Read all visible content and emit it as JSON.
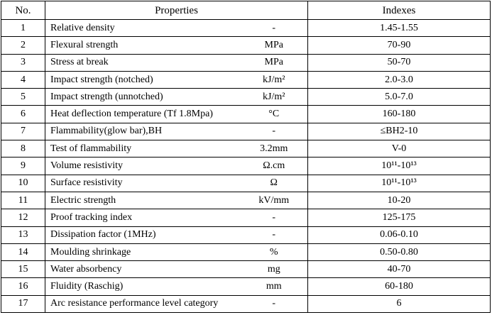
{
  "table": {
    "header": [
      "No.",
      "Properties",
      "Indexes"
    ],
    "rows": [
      [
        "1",
        "Relative density",
        "-",
        "1.45-1.55"
      ],
      [
        "2",
        "Flexural strength",
        "MPa",
        "70-90"
      ],
      [
        "3",
        "Stress at break",
        "MPa",
        "50-70"
      ],
      [
        "4",
        "Impact strength (notched)",
        "kJ/m²",
        "2.0-3.0"
      ],
      [
        "5",
        "Impact strength (unnotched)",
        "kJ/m²",
        "5.0-7.0"
      ],
      [
        "6",
        "Heat deflection temperature (Tf 1.8Mpa)",
        "°C",
        "160-180"
      ],
      [
        "7",
        "Flammability(glow bar),BH",
        "-",
        "≤BH2-10"
      ],
      [
        "8",
        "Test of flammability",
        "3.2mm",
        "V-0"
      ],
      [
        "9",
        "Volume resistivity",
        "Ω.cm",
        "10¹¹-10¹³"
      ],
      [
        "10",
        "Surface resistivity",
        "Ω",
        "10¹¹-10¹³"
      ],
      [
        "11",
        "Electric strength",
        "kV/mm",
        "10-20"
      ],
      [
        "12",
        "Proof tracking index",
        "-",
        "125-175"
      ],
      [
        "13",
        "Dissipation factor (1MHz)",
        "-",
        "0.06-0.10"
      ],
      [
        "14",
        "Moulding shrinkage",
        "%",
        "0.50-0.80"
      ],
      [
        "15",
        "Water absorbency",
        "mg",
        "40-70"
      ],
      [
        "16",
        "Fluidity (Raschig)",
        "mm",
        "60-180"
      ],
      [
        "17",
        "Arc resistance performance level category",
        "-",
        "6"
      ]
    ]
  }
}
